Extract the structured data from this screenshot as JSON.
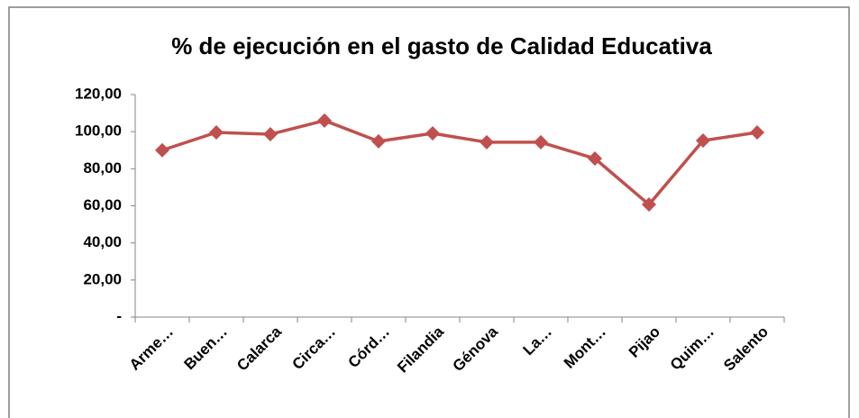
{
  "chart_data": {
    "type": "line",
    "title": "% de ejecución en el gasto de Calidad Educativa",
    "categories": [
      "Arme…",
      "Buen…",
      "Calarca",
      "Circa…",
      "Córd…",
      "Filandia",
      "Génova",
      "La…",
      "Mont…",
      "Pijao",
      "Quim…",
      "Salento"
    ],
    "series": [
      {
        "name": "% de ejecución",
        "color": "#c0504d",
        "values": [
          90,
          99.6,
          98.6,
          106,
          94.8,
          99.1,
          94.3,
          94.3,
          85.5,
          60.7,
          95.2,
          99.6
        ]
      }
    ],
    "ylim": [
      0,
      120
    ],
    "yticks": [
      {
        "value": 0,
        "label": "-"
      },
      {
        "value": 20,
        "label": "20,00"
      },
      {
        "value": 40,
        "label": "40,00"
      },
      {
        "value": 60,
        "label": "60,00"
      },
      {
        "value": 80,
        "label": "80,00"
      },
      {
        "value": 100,
        "label": "100,00"
      },
      {
        "value": 120,
        "label": "120,00"
      }
    ],
    "grid": false
  }
}
